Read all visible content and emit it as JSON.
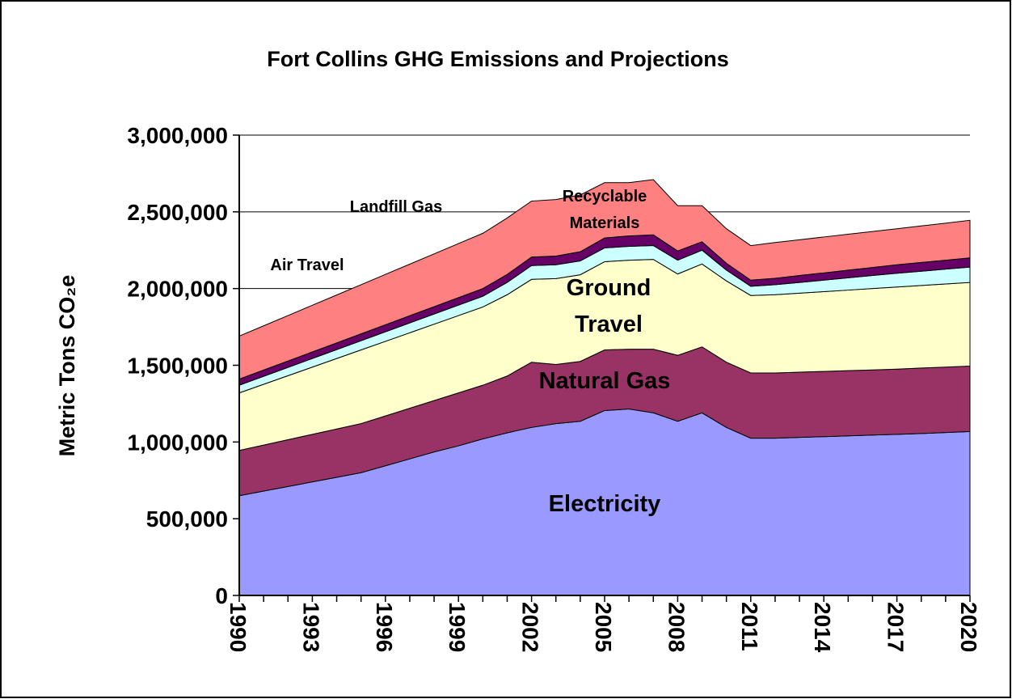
{
  "chart_data": {
    "type": "stacked_area",
    "title": "Fort Collins GHG Emissions and Projections",
    "y_label": "Metric Tons CO₂e",
    "categories": [
      "1990",
      null,
      null,
      "1993",
      null,
      null,
      "1996",
      null,
      null,
      "1999",
      null,
      null,
      "2002",
      null,
      null,
      "2005",
      null,
      null,
      "2008",
      null,
      null,
      "2011",
      null,
      null,
      "2014",
      null,
      null,
      "2017",
      null,
      null,
      "2020"
    ],
    "ylim": [
      0,
      3000000
    ],
    "yticks": [
      0,
      {
        "value": 500000,
        "label": "500,000"
      },
      {
        "value": 1000000,
        "label": "1,000,000"
      },
      {
        "value": 1500000,
        "label": "1,500,000"
      },
      {
        "value": 2000000,
        "label": "2,000,000"
      },
      {
        "value": 2500000,
        "label": "2,500,000"
      },
      {
        "value": 3000000,
        "label": "3,000,000"
      }
    ],
    "grid": true,
    "series": [
      {
        "name": "Electricity",
        "color": "#9999ff",
        "values": [
          650000,
          680000,
          710000,
          740000,
          770000,
          800000,
          845000,
          890000,
          935000,
          975000,
          1020000,
          1060000,
          1095000,
          1120000,
          1135000,
          1205000,
          1215000,
          1190000,
          1135000,
          1190000,
          1095000,
          1025000,
          1025000,
          1030000,
          1035000,
          1040000,
          1045000,
          1050000,
          1055000,
          1062000,
          1068000
        ]
      },
      {
        "name": "Natural Gas",
        "color": "#993366",
        "values": [
          295000,
          300000,
          305000,
          310000,
          315000,
          320000,
          325000,
          330000,
          335000,
          345000,
          350000,
          370000,
          425000,
          385000,
          390000,
          395000,
          390000,
          415000,
          430000,
          430000,
          425000,
          425000,
          425000,
          425000,
          425000,
          425000,
          425000,
          425000,
          427000,
          426000,
          427000
        ]
      },
      {
        "name": "Ground Travel",
        "color": "#ffffcc",
        "values": [
          375000,
          396000,
          417000,
          438000,
          459000,
          480000,
          486000,
          492000,
          498000,
          504000,
          510000,
          530000,
          540000,
          560000,
          565000,
          575000,
          580000,
          585000,
          530000,
          540000,
          530000,
          505000,
          510000,
          515000,
          520000,
          525000,
          530000,
          535000,
          538000,
          542000,
          545000
        ]
      },
      {
        "name": "Air Travel",
        "color": "#ccffff",
        "values": [
          50000,
          52000,
          54000,
          56000,
          58000,
          60000,
          62000,
          64000,
          66000,
          68000,
          70000,
          80000,
          90000,
          90000,
          90000,
          90000,
          90000,
          90000,
          90000,
          90000,
          70000,
          60000,
          65000,
          70000,
          75000,
          80000,
          85000,
          90000,
          93000,
          97000,
          100000
        ]
      },
      {
        "name": "Landfill Gas",
        "color": "#660066",
        "values": [
          40000,
          41000,
          42000,
          43000,
          44000,
          45000,
          46000,
          47000,
          48000,
          49000,
          50000,
          52000,
          55000,
          57000,
          60000,
          65000,
          68000,
          70000,
          60000,
          55000,
          45000,
          40000,
          42000,
          45000,
          47000,
          50000,
          52000,
          55000,
          57000,
          58000,
          60000
        ]
      },
      {
        "name": "Recyclable Materials",
        "color": "#ff8080",
        "values": [
          280000,
          288000,
          296000,
          304000,
          312000,
          320000,
          328000,
          336000,
          344000,
          352000,
          360000,
          368000,
          365000,
          368000,
          370000,
          360000,
          347000,
          360000,
          295000,
          235000,
          225000,
          225000,
          233000,
          233000,
          234000,
          234000,
          235000,
          235000,
          238000,
          241000,
          245000
        ]
      }
    ]
  }
}
